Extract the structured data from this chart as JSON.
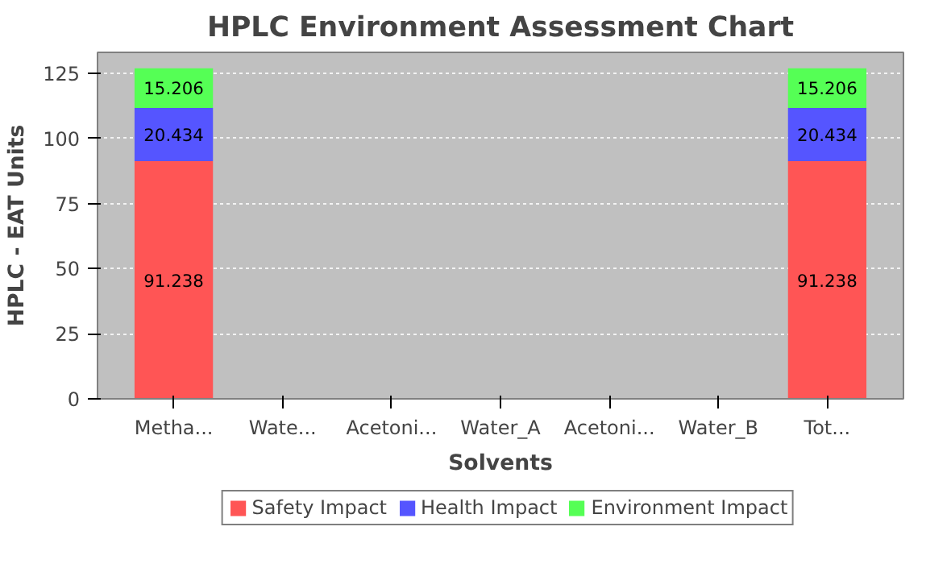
{
  "chart_data": {
    "type": "bar",
    "title": "HPLC Environment Assessment Chart",
    "xlabel": "Solvents",
    "ylabel": "HPLC - EAT Units",
    "categories": [
      "Metha...",
      "Wate...",
      "Acetoni...",
      "Water_A",
      "Acetoni...",
      "Water_B",
      "Tot..."
    ],
    "stacked": true,
    "ylim": [
      0,
      133
    ],
    "yticks": [
      0,
      25,
      50,
      75,
      100,
      125
    ],
    "grid": "y",
    "legend": "bottom",
    "series": [
      {
        "name": "Safety Impact",
        "color": "#ff5555",
        "values": [
          91.238,
          0,
          0,
          0,
          0,
          0,
          91.238
        ],
        "value_labels": [
          "91.238",
          null,
          null,
          null,
          null,
          null,
          "91.238"
        ]
      },
      {
        "name": "Health Impact",
        "color": "#5555ff",
        "values": [
          20.434,
          0,
          0,
          0,
          0,
          0,
          20.434
        ],
        "value_labels": [
          "20.434",
          null,
          null,
          null,
          null,
          null,
          "20.434"
        ]
      },
      {
        "name": "Environment Impact",
        "color": "#55ff55",
        "values": [
          15.206,
          0,
          0,
          0,
          0,
          0,
          15.206
        ],
        "value_labels": [
          "15.206",
          null,
          null,
          null,
          null,
          null,
          "15.206"
        ]
      }
    ]
  }
}
